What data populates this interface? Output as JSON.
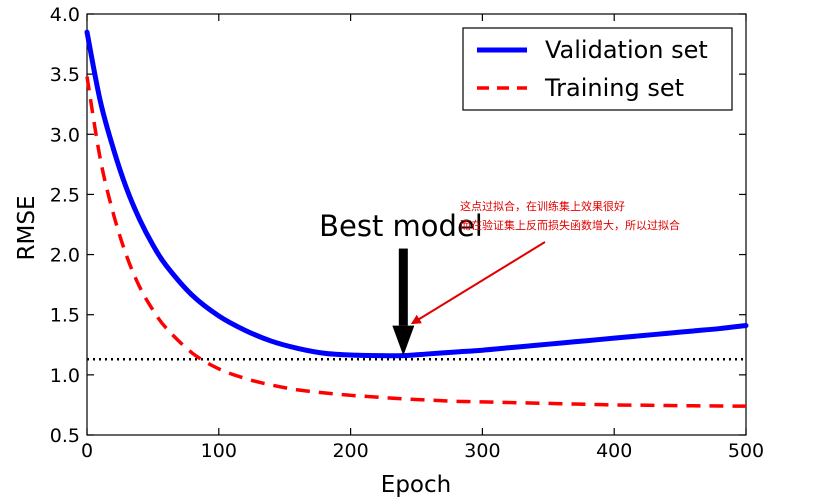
{
  "chart_data": {
    "type": "line",
    "xlabel": "Epoch",
    "ylabel": "RMSE",
    "xlim": [
      0,
      500
    ],
    "ylim": [
      0.5,
      4.0
    ],
    "x_ticks": [
      0,
      100,
      200,
      300,
      400,
      500
    ],
    "y_ticks": [
      0.5,
      1.0,
      1.5,
      2.0,
      2.5,
      3.0,
      3.5,
      4.0
    ],
    "x_tick_labels": [
      "0",
      "100",
      "200",
      "300",
      "400",
      "500"
    ],
    "y_tick_labels": [
      "0.5",
      "1.0",
      "1.5",
      "2.0",
      "2.5",
      "3.0",
      "3.5",
      "4.0"
    ],
    "legend_position": "top-right",
    "grid": false,
    "series": [
      {
        "name": "Validation set",
        "style": "solid",
        "color": "#0000ff",
        "x": [
          0,
          10,
          20,
          30,
          40,
          50,
          60,
          80,
          100,
          120,
          140,
          160,
          180,
          200,
          220,
          240,
          260,
          280,
          300,
          320,
          340,
          360,
          380,
          400,
          420,
          440,
          460,
          480,
          500
        ],
        "y": [
          3.85,
          3.28,
          2.88,
          2.55,
          2.29,
          2.08,
          1.91,
          1.66,
          1.49,
          1.37,
          1.28,
          1.22,
          1.18,
          1.165,
          1.16,
          1.16,
          1.175,
          1.19,
          1.205,
          1.225,
          1.245,
          1.265,
          1.285,
          1.305,
          1.325,
          1.345,
          1.365,
          1.385,
          1.41
        ]
      },
      {
        "name": "Training set",
        "style": "dashed",
        "color": "#ff0000",
        "x": [
          0,
          10,
          20,
          30,
          40,
          50,
          60,
          80,
          100,
          120,
          140,
          160,
          180,
          200,
          220,
          240,
          260,
          280,
          300,
          320,
          340,
          360,
          380,
          400,
          420,
          440,
          460,
          480,
          500
        ],
        "y": [
          3.48,
          2.8,
          2.34,
          1.99,
          1.73,
          1.54,
          1.39,
          1.18,
          1.05,
          0.97,
          0.915,
          0.875,
          0.85,
          0.83,
          0.815,
          0.8,
          0.79,
          0.78,
          0.775,
          0.77,
          0.765,
          0.76,
          0.755,
          0.75,
          0.748,
          0.745,
          0.743,
          0.741,
          0.74
        ]
      }
    ],
    "reference_line": {
      "y": 1.13,
      "style": "dotted",
      "color": "#000000"
    },
    "annotation": {
      "text": "Best model",
      "arrow_x": 240,
      "arrow_y_tip": 1.16,
      "arrow_y_tail": 2.05
    },
    "note": {
      "lines": [
        "这点过拟合，在训练集上效果很好",
        "而在验证集上反而损失函数增大，所以过拟合"
      ],
      "color": "#e00000",
      "arrow_target_x": 247,
      "arrow_target_y": 1.43
    }
  }
}
